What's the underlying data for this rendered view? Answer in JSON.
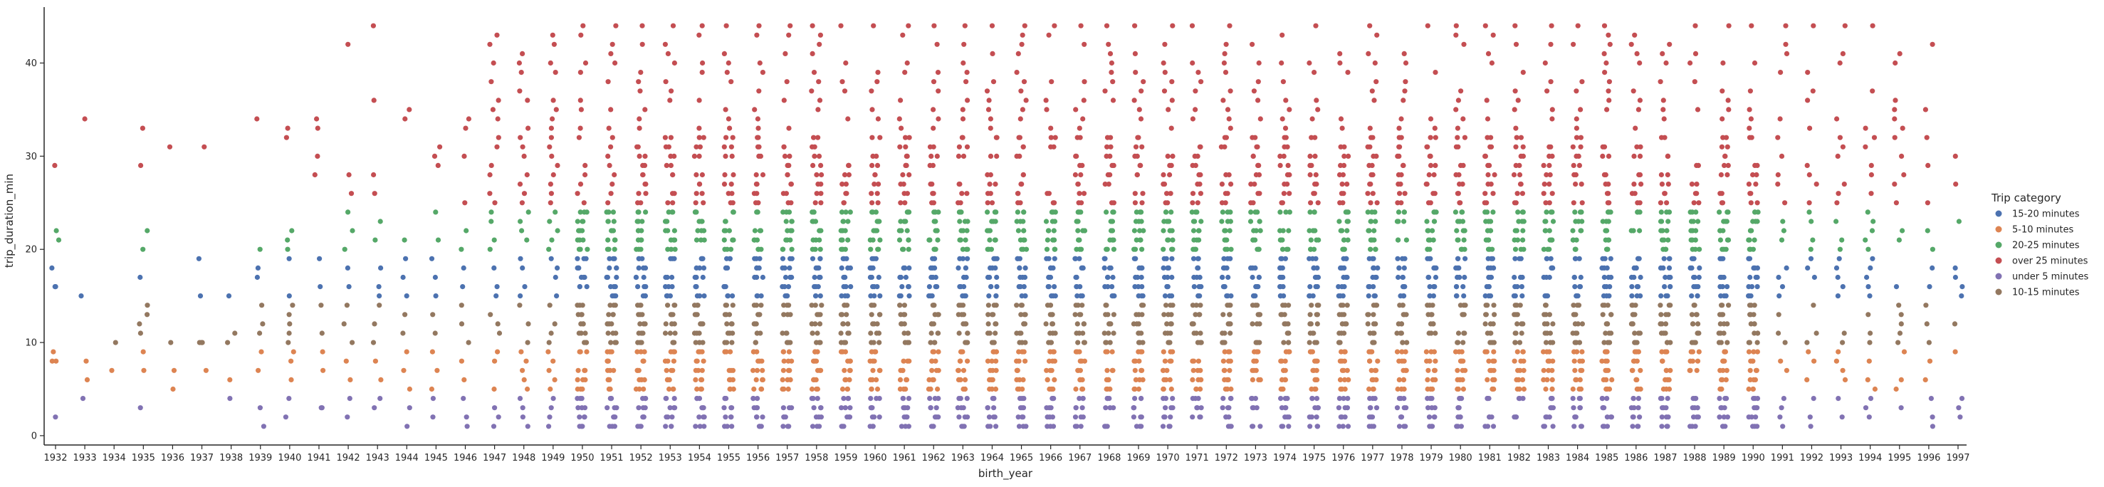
{
  "chart_data": {
    "type": "scatter",
    "style": "categorical strip plot (jittered)",
    "xlabel": "birth_year",
    "ylabel": "trip_duration_min",
    "ylim": [
      -1,
      46
    ],
    "yticks": [
      0,
      10,
      20,
      30,
      40
    ],
    "categories": [
      "1932",
      "1933",
      "1934",
      "1935",
      "1936",
      "1937",
      "1938",
      "1939",
      "1940",
      "1941",
      "1942",
      "1943",
      "1944",
      "1945",
      "1946",
      "1947",
      "1948",
      "1949",
      "1950",
      "1951",
      "1952",
      "1953",
      "1954",
      "1955",
      "1956",
      "1957",
      "1958",
      "1959",
      "1960",
      "1961",
      "1962",
      "1963",
      "1964",
      "1965",
      "1966",
      "1967",
      "1968",
      "1969",
      "1970",
      "1971",
      "1972",
      "1973",
      "1974",
      "1975",
      "1976",
      "1977",
      "1978",
      "1979",
      "1980",
      "1981",
      "1982",
      "1983",
      "1984",
      "1985",
      "1986",
      "1987",
      "1988",
      "1989",
      "1990",
      "1991",
      "1992",
      "1993",
      "1994",
      "1995",
      "1996",
      "1997"
    ],
    "legend": {
      "title": "Trip category",
      "position": "right",
      "entries": [
        {
          "name": "15-20 minutes",
          "color": "#4c72b0"
        },
        {
          "name": "5-10 minutes",
          "color": "#dd8452"
        },
        {
          "name": "20-25 minutes",
          "color": "#55a868"
        },
        {
          "name": "over 25 minutes",
          "color": "#c44e52"
        },
        {
          "name": "under 5 minutes",
          "color": "#8172b3"
        },
        {
          "name": "10-15 minutes",
          "color": "#937860"
        }
      ]
    },
    "category_ranges": {
      "under 5 minutes": [
        1,
        4
      ],
      "5-10 minutes": [
        5,
        9
      ],
      "10-15 minutes": [
        10,
        14
      ],
      "15-20 minutes": [
        15,
        19
      ],
      "20-25 minutes": [
        20,
        24
      ],
      "over 25 minutes": [
        25,
        44
      ]
    },
    "sparse_points": {
      "1932": [
        2,
        8,
        8,
        9,
        16,
        16,
        18,
        21,
        22,
        29
      ],
      "1933": [
        4,
        6,
        8,
        15,
        34
      ],
      "1934": [
        7,
        10
      ],
      "1935": [
        3,
        7,
        9,
        11,
        12,
        13,
        14,
        17,
        20,
        22,
        29,
        33
      ],
      "1936": [
        5,
        7,
        10,
        31
      ],
      "1937": [
        7,
        10,
        10,
        10,
        15,
        19,
        31
      ],
      "1938": [
        4,
        6,
        10,
        11,
        15
      ],
      "1939": [
        1,
        3,
        7,
        9,
        11,
        12,
        14,
        17,
        18,
        20,
        34
      ],
      "1940": [
        2,
        4,
        6,
        8,
        9,
        10,
        11,
        12,
        13,
        14,
        15,
        19,
        20,
        21,
        22,
        32,
        33
      ],
      "1941": [
        3,
        3,
        7,
        9,
        11,
        14,
        16,
        19,
        28,
        30,
        33,
        34
      ],
      "1942": [
        2,
        4,
        6,
        8,
        10,
        12,
        14,
        16,
        18,
        20,
        22,
        24,
        26,
        28,
        42
      ],
      "1943": [
        3,
        4,
        6,
        8,
        10,
        12,
        14,
        15,
        16,
        18,
        21,
        23,
        26,
        28,
        36,
        44
      ],
      "1944": [
        1,
        3,
        5,
        7,
        9,
        11,
        13,
        15,
        17,
        19,
        21,
        34,
        35
      ],
      "1945": [
        2,
        4,
        5,
        7,
        9,
        11,
        13,
        15,
        17,
        19,
        21,
        24,
        29,
        30,
        31
      ],
      "1946": [
        1,
        2,
        4,
        6,
        8,
        10,
        12,
        14,
        16,
        18,
        20,
        22,
        25,
        30,
        33,
        34
      ],
      "1996": [
        1,
        2,
        4,
        6,
        8,
        10,
        12,
        14,
        16,
        18,
        20,
        22,
        25,
        29,
        32,
        35,
        42
      ],
      "1997": [
        2,
        3,
        4,
        9,
        12,
        15,
        16,
        17,
        18,
        23,
        27,
        30
      ]
    },
    "dense_years_note": "1947-1995: points at nearly every integer minute 1-44, colored by trip category"
  }
}
